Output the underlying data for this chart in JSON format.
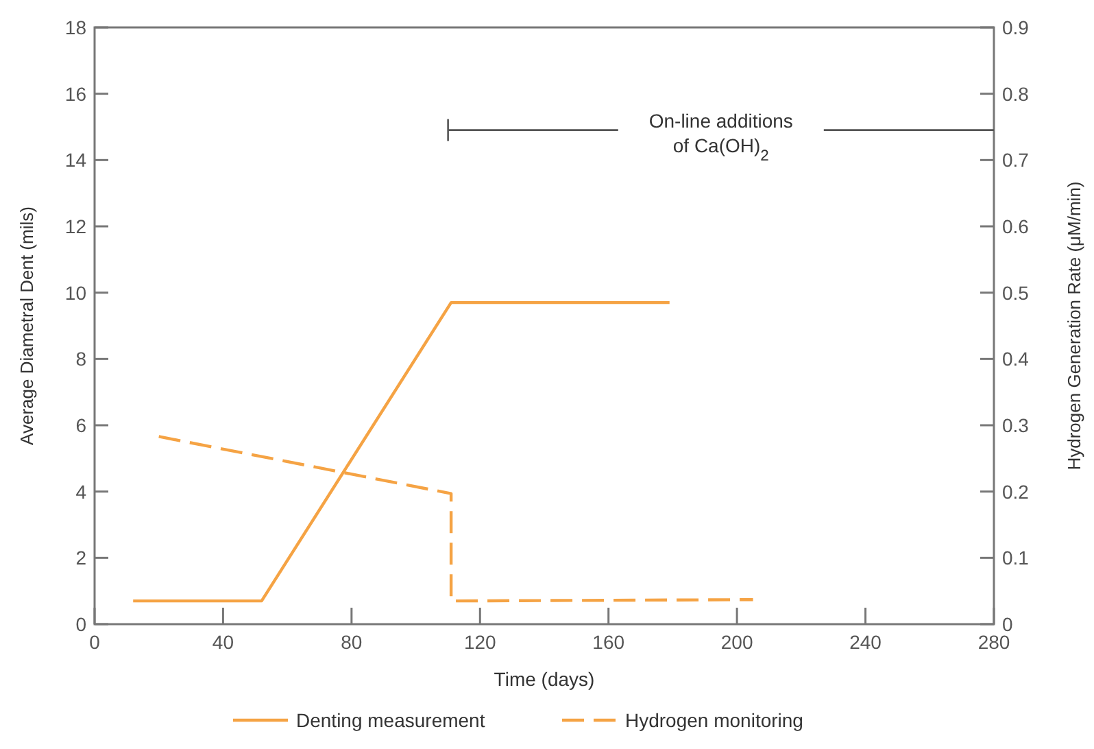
{
  "chart_data": {
    "type": "line",
    "xlabel": "Time (days)",
    "ylabel": "Average Diametral Dent (mils)",
    "y2label": "Hydrogen Generation Rate (μM/min)",
    "xlim": [
      0,
      280
    ],
    "xticks": [
      0,
      40,
      80,
      120,
      160,
      200,
      240,
      280
    ],
    "ylim": [
      0,
      18
    ],
    "yticks": [
      0,
      2,
      4,
      6,
      8,
      10,
      12,
      14,
      16,
      18
    ],
    "y2lim": [
      0,
      0.9
    ],
    "y2ticks": [
      0,
      0.1,
      0.2,
      0.3,
      0.4,
      0.5,
      0.6,
      0.7,
      0.8,
      0.9
    ],
    "series": [
      {
        "name": "Denting measurement",
        "color": "#f5a344",
        "line_style": "solid",
        "x": [
          12,
          52,
          111,
          179
        ],
        "values": [
          0.7,
          0.7,
          9.7,
          9.7
        ]
      },
      {
        "name": "Hydrogen monitoring",
        "color": "#f5a344",
        "line_style": "dashed",
        "axis": "y2",
        "x": [
          20,
          111,
          111,
          205
        ],
        "values": [
          0.283,
          0.197,
          0.035,
          0.037
        ]
      }
    ],
    "annotations": [
      "On-line additions\nof Ca(OH)$_{2}$"
    ],
    "grid": false,
    "legend": "bottom",
    "marker": "none"
  }
}
